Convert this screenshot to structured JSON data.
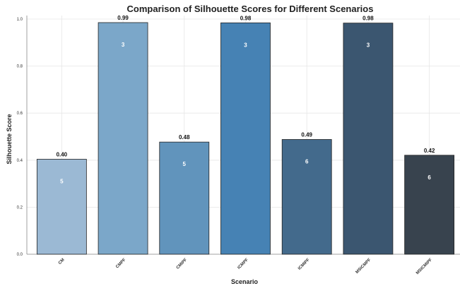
{
  "chart_data": {
    "type": "bar",
    "title": "Comparison of Silhouette Scores for Different Scenarios",
    "xlabel": "Scenario",
    "ylabel": "Silhouette Score",
    "ylim": [
      0,
      1.0
    ],
    "yticks": [
      "0.0",
      "0.2",
      "0.4",
      "0.6",
      "0.8",
      "1.0"
    ],
    "grid": true,
    "categories": [
      "CM",
      "CMPF",
      "CMIPF",
      "ICMPF",
      "ICMIPF",
      "MSICMPF",
      "MSICMIPF"
    ],
    "values": [
      0.404,
      0.985,
      0.477,
      0.984,
      0.488,
      0.983,
      0.421
    ],
    "value_labels": [
      "0.40",
      "0.99",
      "0.48",
      "0.98",
      "0.49",
      "0.98",
      "0.42"
    ],
    "inner_labels": [
      "5",
      "3",
      "5",
      "3",
      "6",
      "3",
      "6"
    ],
    "colors": [
      "#9bb9d4",
      "#7ba7c9",
      "#6194bc",
      "#4682b4",
      "#436a8c",
      "#3b5670",
      "#38434e"
    ]
  }
}
